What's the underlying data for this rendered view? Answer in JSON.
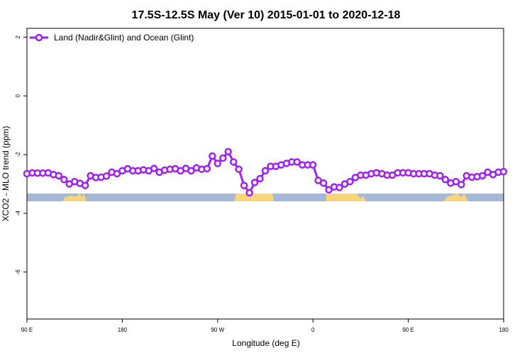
{
  "chart_data": {
    "type": "line",
    "title": "17.5S-12.5S May (Ver 10)   2015-01-01 to 2020-12-18",
    "x_label": "Longitude (deg E)",
    "y_label": "XCO2 - MLO trend (ppm)",
    "xlim": [
      90,
      540
    ],
    "ylim": [
      -7.6,
      2.3
    ],
    "xticks": [
      {
        "value": 90,
        "label": "90 E"
      },
      180,
      {
        "value": 270,
        "label": "90 W"
      },
      {
        "value": 360,
        "label": "0"
      },
      {
        "value": 450,
        "label": "90 E"
      },
      {
        "value": 540,
        "label": "180"
      }
    ],
    "yticks": [
      2,
      0,
      -2,
      -4,
      -6
    ],
    "legend": "top-left",
    "x": [
      90,
      95,
      100,
      105,
      110,
      115,
      120,
      125,
      130,
      135,
      140,
      145,
      150,
      155,
      160,
      165,
      170,
      175,
      180,
      185,
      190,
      195,
      200,
      205,
      210,
      215,
      220,
      225,
      230,
      235,
      240,
      245,
      250,
      255,
      260,
      265,
      270,
      275,
      280,
      285,
      290,
      295,
      300,
      305,
      310,
      315,
      320,
      325,
      330,
      335,
      340,
      345,
      350,
      355,
      360,
      365,
      370,
      375,
      380,
      385,
      390,
      395,
      400,
      405,
      410,
      415,
      420,
      425,
      430,
      435,
      440,
      445,
      450,
      455,
      460,
      465,
      470,
      475,
      480,
      485,
      490,
      495,
      500,
      505,
      510,
      515,
      520,
      525,
      530,
      535,
      540
    ],
    "series": [
      {
        "name": "Land (Nadir&Glint) and Ocean (Glint)",
        "color": "#a020f0",
        "values": [
          -2.65,
          -2.62,
          -2.63,
          -2.63,
          -2.62,
          -2.68,
          -2.72,
          -2.85,
          -3.0,
          -2.92,
          -2.98,
          -3.05,
          -2.72,
          -2.78,
          -2.77,
          -2.73,
          -2.6,
          -2.65,
          -2.55,
          -2.48,
          -2.55,
          -2.55,
          -2.52,
          -2.55,
          -2.47,
          -2.6,
          -2.53,
          -2.5,
          -2.48,
          -2.55,
          -2.47,
          -2.55,
          -2.45,
          -2.5,
          -2.48,
          -2.05,
          -2.3,
          -2.12,
          -1.9,
          -2.25,
          -2.5,
          -3.05,
          -3.3,
          -2.95,
          -2.82,
          -2.55,
          -2.4,
          -2.4,
          -2.35,
          -2.3,
          -2.25,
          -2.25,
          -2.35,
          -2.35,
          -2.35,
          -2.88,
          -2.97,
          -3.2,
          -3.1,
          -3.12,
          -3.0,
          -2.92,
          -2.78,
          -2.7,
          -2.7,
          -2.65,
          -2.62,
          -2.65,
          -2.7,
          -2.7,
          -2.62,
          -2.62,
          -2.62,
          -2.65,
          -2.65,
          -2.65,
          -2.65,
          -2.7,
          -2.72,
          -2.85,
          -2.97,
          -2.92,
          -3.02,
          -2.72,
          -2.77,
          -2.75,
          -2.72,
          -2.6,
          -2.68,
          -2.6,
          -2.58
        ]
      }
    ]
  }
}
